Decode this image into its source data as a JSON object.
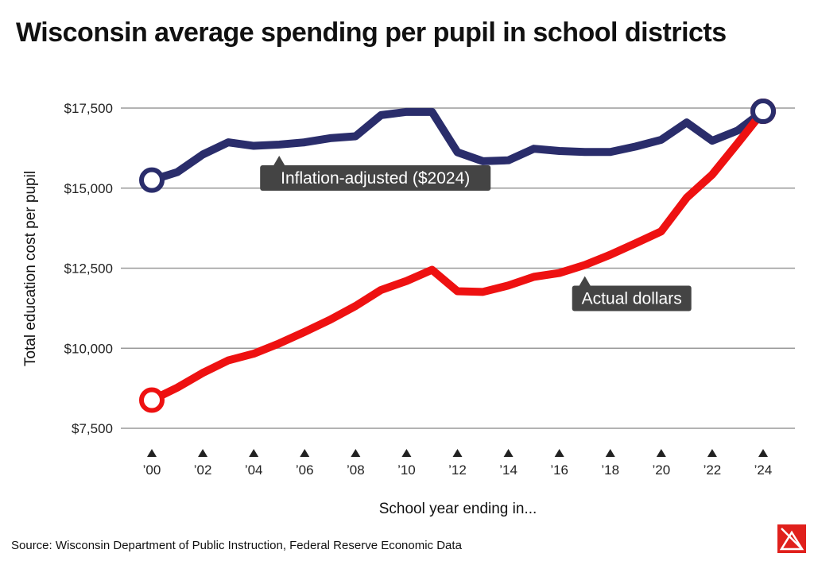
{
  "chart_data": {
    "type": "line",
    "title": "Wisconsin average spending per pupil in school districts",
    "xlabel": "School year ending in...",
    "ylabel": "Total education cost per pupil",
    "x": [
      2000,
      2001,
      2002,
      2003,
      2004,
      2005,
      2006,
      2007,
      2008,
      2009,
      2010,
      2011,
      2012,
      2013,
      2014,
      2015,
      2016,
      2017,
      2018,
      2019,
      2020,
      2021,
      2022,
      2023,
      2024
    ],
    "x_tick_labels": [
      "’00",
      "’02",
      "’04",
      "’06",
      "’08",
      "’10",
      "’12",
      "’14",
      "’16",
      "’18",
      "’20",
      "’22",
      "’24"
    ],
    "x_tick_values": [
      2000,
      2002,
      2004,
      2006,
      2008,
      2010,
      2012,
      2014,
      2016,
      2018,
      2020,
      2022,
      2024
    ],
    "y_tick_labels": [
      "$17,500",
      "$15,000",
      "$12,500",
      "$10,000",
      "$7,500"
    ],
    "y_tick_values": [
      17500,
      15000,
      12500,
      10000,
      7500
    ],
    "ylim": [
      7500,
      17500
    ],
    "grid": true,
    "series": [
      {
        "name": "Inflation-adjusted ($2024)",
        "color": "#2a2d6b",
        "values": [
          15250,
          15500,
          16050,
          16430,
          16320,
          16360,
          16430,
          16560,
          16620,
          17280,
          17380,
          17380,
          16120,
          15840,
          15870,
          16230,
          16160,
          16130,
          16130,
          16300,
          16510,
          17050,
          16480,
          16800,
          17400
        ]
      },
      {
        "name": "Actual dollars",
        "color": "#ee1111",
        "values": [
          8380,
          8770,
          9230,
          9620,
          9830,
          10150,
          10510,
          10890,
          11320,
          11820,
          12100,
          12450,
          11780,
          11760,
          11960,
          12230,
          12350,
          12600,
          12920,
          13280,
          13650,
          14700,
          15420,
          16400,
          17400
        ]
      }
    ],
    "annotations": [
      {
        "text": "Inflation-adjusted ($2024)",
        "series": 0,
        "x": 2005
      },
      {
        "text": "Actual dollars",
        "series": 1,
        "x": 2017
      }
    ]
  },
  "footer": {
    "source": "Source: Wisconsin Department of Public Instruction, Federal Reserve Economic Data"
  },
  "logo_icon": "publisher-logo-icon"
}
